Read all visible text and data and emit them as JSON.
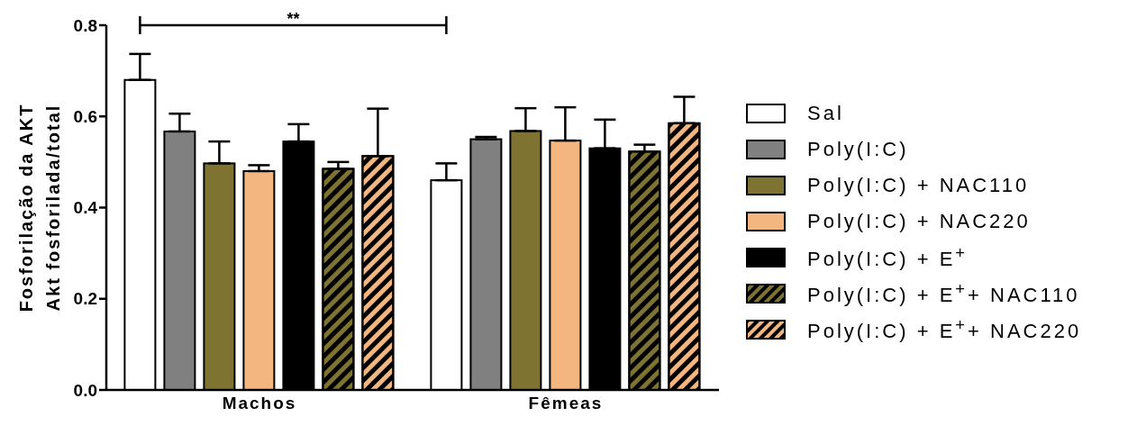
{
  "chart_data": {
    "type": "bar",
    "ylabel": "Fosforilação da AKT\nAkt fosforilada/total",
    "categories": [
      "Machos",
      "Fêmeas"
    ],
    "ylim": [
      0,
      0.8
    ],
    "yticks": [
      {
        "value": 0,
        "label": "0.0"
      },
      0.2,
      0.4,
      0.6,
      0.8
    ],
    "legend": "right",
    "grid": false,
    "annotations": [
      "**"
    ],
    "series": [
      {
        "name": "Sal",
        "color": "#ffffff",
        "values": [
          0.68,
          0.46
        ],
        "errors": [
          [
            0.68,
            0.737
          ],
          [
            0.46,
            0.497
          ]
        ]
      },
      {
        "name": "Poly(I:C)",
        "color": "#808080",
        "values": [
          0.567,
          0.55
        ],
        "errors": [
          [
            0.567,
            0.606
          ],
          [
            0.55,
            0.555
          ]
        ]
      },
      {
        "name": "Poly(I:C) + NAC110",
        "color": "#7f7331",
        "values": [
          0.497,
          0.568
        ],
        "errors": [
          [
            0.497,
            0.545
          ],
          [
            0.568,
            0.618
          ]
        ]
      },
      {
        "name": "Poly(I:C) + NAC220",
        "color": "#f4b680",
        "values": [
          0.48,
          0.547
        ],
        "errors": [
          [
            0.48,
            0.493
          ],
          [
            0.547,
            0.62
          ]
        ]
      },
      {
        "name": "Poly(I:C) + E$^{+}$",
        "color": "#000000",
        "values": [
          0.545,
          0.53
        ],
        "errors": [
          [
            0.545,
            0.583
          ],
          [
            0.53,
            0.593
          ]
        ]
      },
      {
        "name": "Poly(I:C) + E$^{+}$+ NAC110",
        "color": "#7f7331",
        "values": [
          0.485,
          0.523
        ],
        "errors": [
          [
            0.485,
            0.5
          ],
          [
            0.523,
            0.538
          ]
        ]
      },
      {
        "name": "Poly(I:C) + E$^{+}$+ NAC220",
        "color": "#f4b680",
        "values": [
          0.513,
          0.585
        ],
        "errors": [
          [
            0.513,
            0.617
          ],
          [
            0.585,
            0.643
          ]
        ]
      }
    ]
  }
}
